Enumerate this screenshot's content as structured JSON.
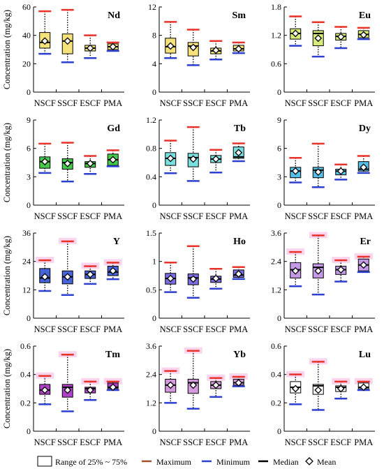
{
  "figure": {
    "ylabel": "Concentration (mg/kg)",
    "categories": [
      "NSCF",
      "SSCF",
      "ESCF",
      "PMA"
    ]
  },
  "legend": {
    "box_label": "Range of 25% ~ 75%",
    "max_label": "Maximum",
    "min_label": "Minimum",
    "median_label": "Median",
    "mean_label": "Mean"
  },
  "colors": {
    "maximum": "#e8322a",
    "maximum_legend": "#a0522d",
    "minimum": "#2b3fd0",
    "median": "#000000",
    "whisker": "#000000",
    "highlight": "#f9d6ee"
  },
  "chart_data": [
    {
      "type": "box",
      "element": "Nd",
      "fill": "#f6e27a",
      "ylim": [
        0,
        60
      ],
      "yticks": [
        0,
        20,
        40,
        60
      ],
      "highlight": false,
      "boxes": [
        {
          "category": "NSCF",
          "min": 27,
          "q1": 31,
          "median": 35,
          "q3": 42,
          "max": 57,
          "mean": 36
        },
        {
          "category": "SSCF",
          "min": 21,
          "q1": 27,
          "median": 36,
          "q3": 41,
          "max": 58,
          "mean": 36
        },
        {
          "category": "ESCF",
          "min": 24,
          "q1": 29,
          "median": 31,
          "q3": 33,
          "max": 40,
          "mean": 31
        },
        {
          "category": "PMA",
          "min": 29,
          "q1": 30,
          "median": 32,
          "q3": 34,
          "max": 35,
          "mean": 32
        }
      ]
    },
    {
      "type": "box",
      "element": "Sm",
      "fill": "#f6e27a",
      "ylim": [
        0,
        12
      ],
      "yticks": [
        0,
        4,
        8,
        12
      ],
      "highlight": false,
      "boxes": [
        {
          "category": "NSCF",
          "min": 4.8,
          "q1": 5.5,
          "median": 6.4,
          "q3": 7.6,
          "max": 9.9,
          "mean": 6.5
        },
        {
          "category": "SSCF",
          "min": 3.8,
          "q1": 5.1,
          "median": 6.5,
          "q3": 7.0,
          "max": 8.8,
          "mean": 6.3
        },
        {
          "category": "ESCF",
          "min": 4.6,
          "q1": 5.4,
          "median": 5.8,
          "q3": 6.2,
          "max": 7.2,
          "mean": 5.9
        },
        {
          "category": "PMA",
          "min": 5.5,
          "q1": 5.8,
          "median": 6.1,
          "q3": 6.6,
          "max": 7.0,
          "mean": 6.1
        }
      ]
    },
    {
      "type": "box",
      "element": "Eu",
      "fill": "#d6eb7a",
      "ylim": [
        0,
        1.8
      ],
      "yticks": [
        0,
        0.6,
        1.2,
        1.8
      ],
      "highlight": false,
      "boxes": [
        {
          "category": "NSCF",
          "min": 0.98,
          "q1": 1.12,
          "median": 1.24,
          "q3": 1.34,
          "max": 1.6,
          "mean": 1.24
        },
        {
          "category": "SSCF",
          "min": 0.75,
          "q1": 0.98,
          "median": 1.24,
          "q3": 1.3,
          "max": 1.48,
          "mean": 1.14
        },
        {
          "category": "ESCF",
          "min": 0.93,
          "q1": 1.1,
          "median": 1.18,
          "q3": 1.24,
          "max": 1.38,
          "mean": 1.17
        },
        {
          "category": "PMA",
          "min": 1.12,
          "q1": 1.15,
          "median": 1.22,
          "q3": 1.3,
          "max": 1.36,
          "mean": 1.21
        }
      ]
    },
    {
      "type": "box",
      "element": "Gd",
      "fill": "#46c84a",
      "ylim": [
        0,
        9
      ],
      "yticks": [
        0,
        3,
        6,
        9
      ],
      "highlight": false,
      "boxes": [
        {
          "category": "NSCF",
          "min": 3.4,
          "q1": 3.9,
          "median": 4.6,
          "q3": 5.1,
          "max": 6.5,
          "mean": 4.6
        },
        {
          "category": "SSCF",
          "min": 2.5,
          "q1": 3.8,
          "median": 4.5,
          "q3": 4.9,
          "max": 6.6,
          "mean": 4.4
        },
        {
          "category": "ESCF",
          "min": 3.3,
          "q1": 4.0,
          "median": 4.4,
          "q3": 4.6,
          "max": 5.2,
          "mean": 4.4
        },
        {
          "category": "PMA",
          "min": 4.1,
          "q1": 4.2,
          "median": 4.8,
          "q3": 5.4,
          "max": 5.8,
          "mean": 4.8
        }
      ]
    },
    {
      "type": "box",
      "element": "Tb",
      "fill": "#78e0df",
      "ylim": [
        0,
        1.2
      ],
      "yticks": [
        0,
        0.4,
        0.8,
        1.2
      ],
      "highlight": false,
      "boxes": [
        {
          "category": "NSCF",
          "min": 0.45,
          "q1": 0.56,
          "median": 0.66,
          "q3": 0.74,
          "max": 0.91,
          "mean": 0.66
        },
        {
          "category": "SSCF",
          "min": 0.34,
          "q1": 0.54,
          "median": 0.67,
          "q3": 0.73,
          "max": 1.1,
          "mean": 0.65
        },
        {
          "category": "ESCF",
          "min": 0.46,
          "q1": 0.6,
          "median": 0.65,
          "q3": 0.7,
          "max": 0.78,
          "mean": 0.65
        },
        {
          "category": "PMA",
          "min": 0.62,
          "q1": 0.66,
          "median": 0.68,
          "q3": 0.82,
          "max": 0.87,
          "mean": 0.74
        }
      ]
    },
    {
      "type": "box",
      "element": "Dy",
      "fill": "#56bfe8",
      "ylim": [
        0,
        9
      ],
      "yticks": [
        0,
        3,
        6,
        9
      ],
      "highlight": false,
      "boxes": [
        {
          "category": "NSCF",
          "min": 2.4,
          "q1": 2.9,
          "median": 3.6,
          "q3": 4.0,
          "max": 5.0,
          "mean": 3.6
        },
        {
          "category": "SSCF",
          "min": 1.9,
          "q1": 2.9,
          "median": 3.7,
          "q3": 4.0,
          "max": 6.5,
          "mean": 3.5
        },
        {
          "category": "ESCF",
          "min": 2.7,
          "q1": 3.2,
          "median": 3.6,
          "q3": 3.8,
          "max": 4.3,
          "mean": 3.6
        },
        {
          "category": "PMA",
          "min": 3.4,
          "q1": 3.6,
          "median": 3.8,
          "q3": 4.6,
          "max": 5.2,
          "mean": 4.0
        }
      ]
    },
    {
      "type": "box",
      "element": "Y",
      "fill": "#4664d8",
      "ylim": [
        0,
        36
      ],
      "yticks": [
        0,
        12,
        24,
        36
      ],
      "highlight": true,
      "boxes": [
        {
          "category": "NSCF",
          "min": 11.5,
          "q1": 15.0,
          "median": 17.0,
          "q3": 21.0,
          "max": 24.5,
          "mean": 17.5
        },
        {
          "category": "SSCF",
          "min": 9.8,
          "q1": 14.5,
          "median": 17.5,
          "q3": 20.0,
          "max": 32.5,
          "mean": 17.5
        },
        {
          "category": "ESCF",
          "min": 14.5,
          "q1": 16.8,
          "median": 18.5,
          "q3": 20.0,
          "max": 22.0,
          "mean": 18.5
        },
        {
          "category": "PMA",
          "min": 16.5,
          "q1": 18.0,
          "median": 19.5,
          "q3": 22.0,
          "max": 23.5,
          "mean": 20.0
        }
      ]
    },
    {
      "type": "box",
      "element": "Ho",
      "fill": "#7a6ee4",
      "ylim": [
        0,
        1.5
      ],
      "yticks": [
        0,
        0.5,
        1.0,
        1.5
      ],
      "highlight": false,
      "boxes": [
        {
          "category": "NSCF",
          "min": 0.46,
          "q1": 0.6,
          "median": 0.7,
          "q3": 0.79,
          "max": 0.98,
          "mean": 0.7
        },
        {
          "category": "SSCF",
          "min": 0.36,
          "q1": 0.59,
          "median": 0.71,
          "q3": 0.78,
          "max": 1.27,
          "mean": 0.69
        },
        {
          "category": "ESCF",
          "min": 0.52,
          "q1": 0.63,
          "median": 0.69,
          "q3": 0.74,
          "max": 0.87,
          "mean": 0.7
        },
        {
          "category": "PMA",
          "min": 0.69,
          "q1": 0.72,
          "median": 0.76,
          "q3": 0.85,
          "max": 0.9,
          "mean": 0.78
        }
      ]
    },
    {
      "type": "box",
      "element": "Er",
      "fill": "#c49ae6",
      "ylim": [
        0,
        3.6
      ],
      "yticks": [
        0,
        1.2,
        2.4,
        3.6
      ],
      "highlight": true,
      "boxes": [
        {
          "category": "NSCF",
          "min": 1.35,
          "q1": 1.7,
          "median": 2.05,
          "q3": 2.35,
          "max": 2.8,
          "mean": 2.0
        },
        {
          "category": "SSCF",
          "min": 1.0,
          "q1": 1.7,
          "median": 2.15,
          "q3": 2.3,
          "max": 3.5,
          "mean": 2.0
        },
        {
          "category": "ESCF",
          "min": 1.55,
          "q1": 1.85,
          "median": 2.05,
          "q3": 2.2,
          "max": 2.45,
          "mean": 2.05
        },
        {
          "category": "PMA",
          "min": 1.95,
          "q1": 2.0,
          "median": 2.25,
          "q3": 2.5,
          "max": 2.6,
          "mean": 2.25
        }
      ]
    },
    {
      "type": "box",
      "element": "Tm",
      "fill": "#b040c8",
      "ylim": [
        0,
        0.6
      ],
      "yticks": [
        0,
        0.2,
        0.4,
        0.6
      ],
      "highlight": true,
      "boxes": [
        {
          "category": "NSCF",
          "min": 0.19,
          "q1": 0.26,
          "median": 0.29,
          "q3": 0.33,
          "max": 0.39,
          "mean": 0.29
        },
        {
          "category": "SSCF",
          "min": 0.14,
          "q1": 0.24,
          "median": 0.31,
          "q3": 0.33,
          "max": 0.54,
          "mean": 0.29
        },
        {
          "category": "ESCF",
          "min": 0.22,
          "q1": 0.27,
          "median": 0.3,
          "q3": 0.31,
          "max": 0.35,
          "mean": 0.29
        },
        {
          "category": "PMA",
          "min": 0.29,
          "q1": 0.3,
          "median": 0.31,
          "q3": 0.34,
          "max": 0.35,
          "mean": 0.31
        }
      ]
    },
    {
      "type": "box",
      "element": "Yb",
      "fill": "#d49adc",
      "ylim": [
        0,
        3.6
      ],
      "yticks": [
        0,
        1.2,
        2.4,
        3.6
      ],
      "highlight": true,
      "boxes": [
        {
          "category": "NSCF",
          "min": 1.2,
          "q1": 1.65,
          "median": 1.95,
          "q3": 2.2,
          "max": 2.55,
          "mean": 1.95
        },
        {
          "category": "SSCF",
          "min": 0.95,
          "q1": 1.6,
          "median": 2.05,
          "q3": 2.2,
          "max": 3.4,
          "mean": 1.95
        },
        {
          "category": "ESCF",
          "min": 1.45,
          "q1": 1.8,
          "median": 1.95,
          "q3": 2.1,
          "max": 2.25,
          "mean": 1.95
        },
        {
          "category": "PMA",
          "min": 1.9,
          "q1": 1.95,
          "median": 2.05,
          "q3": 2.2,
          "max": 2.3,
          "mean": 2.05
        }
      ]
    },
    {
      "type": "box",
      "element": "Lu",
      "fill": "#ffffff",
      "ylim": [
        0,
        0.6
      ],
      "yticks": [
        0,
        0.2,
        0.4,
        0.6
      ],
      "highlight": true,
      "boxes": [
        {
          "category": "NSCF",
          "min": 0.19,
          "q1": 0.27,
          "median": 0.31,
          "q3": 0.35,
          "max": 0.4,
          "mean": 0.3
        },
        {
          "category": "SSCF",
          "min": 0.15,
          "q1": 0.26,
          "median": 0.32,
          "q3": 0.33,
          "max": 0.49,
          "mean": 0.29
        },
        {
          "category": "ESCF",
          "min": 0.23,
          "q1": 0.28,
          "median": 0.31,
          "q3": 0.32,
          "max": 0.35,
          "mean": 0.3
        },
        {
          "category": "PMA",
          "min": 0.29,
          "q1": 0.3,
          "median": 0.31,
          "q3": 0.34,
          "max": 0.35,
          "mean": 0.31
        }
      ]
    }
  ]
}
